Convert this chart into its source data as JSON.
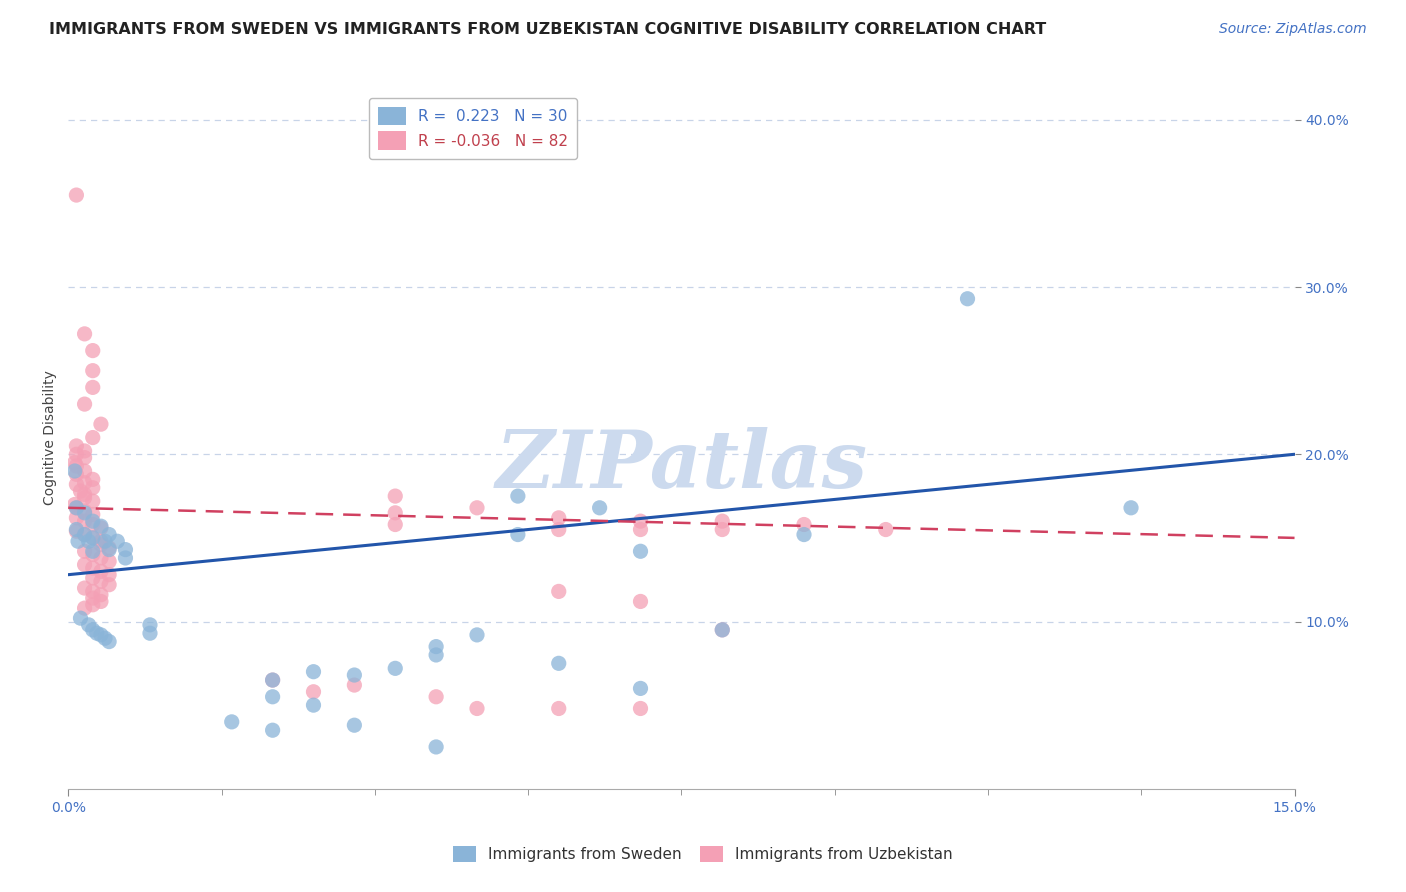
{
  "title": "IMMIGRANTS FROM SWEDEN VS IMMIGRANTS FROM UZBEKISTAN COGNITIVE DISABILITY CORRELATION CHART",
  "source": "Source: ZipAtlas.com",
  "ylabel": "Cognitive Disability",
  "ytick_labels": [
    "10.0%",
    "20.0%",
    "30.0%",
    "40.0%"
  ],
  "ytick_values": [
    0.1,
    0.2,
    0.3,
    0.4
  ],
  "xlim": [
    0.0,
    0.15
  ],
  "ylim": [
    0.0,
    0.42
  ],
  "sweden_color": "#8ab4d8",
  "uzbekistan_color": "#f4a0b5",
  "trendline_sweden_color": "#2255aa",
  "trendline_uzbekistan_color": "#d04060",
  "watermark_text": "ZIPatlas",
  "watermark_color": "#ccdaee",
  "background_color": "#ffffff",
  "grid_color": "#c8d4e8",
  "title_fontsize": 11.5,
  "source_fontsize": 10,
  "axis_label_fontsize": 10,
  "tick_fontsize": 10,
  "legend_fontsize": 11,
  "sweden_trend_x": [
    0.0,
    0.15
  ],
  "sweden_trend_y": [
    0.128,
    0.2
  ],
  "uzbekistan_trend_x": [
    0.0,
    0.15
  ],
  "uzbekistan_trend_y": [
    0.168,
    0.15
  ],
  "sweden_points": [
    [
      0.0008,
      0.19
    ],
    [
      0.001,
      0.168
    ],
    [
      0.001,
      0.155
    ],
    [
      0.0012,
      0.148
    ],
    [
      0.002,
      0.165
    ],
    [
      0.002,
      0.152
    ],
    [
      0.0025,
      0.148
    ],
    [
      0.003,
      0.16
    ],
    [
      0.003,
      0.15
    ],
    [
      0.003,
      0.142
    ],
    [
      0.004,
      0.157
    ],
    [
      0.0045,
      0.148
    ],
    [
      0.005,
      0.152
    ],
    [
      0.005,
      0.143
    ],
    [
      0.006,
      0.148
    ],
    [
      0.007,
      0.143
    ],
    [
      0.007,
      0.138
    ],
    [
      0.0015,
      0.102
    ],
    [
      0.0025,
      0.098
    ],
    [
      0.003,
      0.095
    ],
    [
      0.0035,
      0.093
    ],
    [
      0.004,
      0.092
    ],
    [
      0.0045,
      0.09
    ],
    [
      0.005,
      0.088
    ],
    [
      0.01,
      0.098
    ],
    [
      0.01,
      0.093
    ],
    [
      0.055,
      0.175
    ],
    [
      0.055,
      0.152
    ],
    [
      0.065,
      0.168
    ],
    [
      0.11,
      0.293
    ],
    [
      0.07,
      0.142
    ],
    [
      0.09,
      0.152
    ],
    [
      0.13,
      0.168
    ],
    [
      0.08,
      0.095
    ],
    [
      0.045,
      0.085
    ],
    [
      0.05,
      0.092
    ],
    [
      0.07,
      0.06
    ],
    [
      0.06,
      0.075
    ],
    [
      0.025,
      0.065
    ],
    [
      0.03,
      0.07
    ],
    [
      0.025,
      0.055
    ],
    [
      0.03,
      0.05
    ],
    [
      0.02,
      0.04
    ],
    [
      0.025,
      0.035
    ],
    [
      0.035,
      0.068
    ],
    [
      0.04,
      0.072
    ],
    [
      0.045,
      0.08
    ],
    [
      0.035,
      0.038
    ],
    [
      0.045,
      0.025
    ]
  ],
  "uzbekistan_points": [
    [
      0.001,
      0.355
    ],
    [
      0.002,
      0.272
    ],
    [
      0.003,
      0.262
    ],
    [
      0.003,
      0.25
    ],
    [
      0.003,
      0.24
    ],
    [
      0.002,
      0.23
    ],
    [
      0.004,
      0.218
    ],
    [
      0.003,
      0.21
    ],
    [
      0.001,
      0.205
    ],
    [
      0.002,
      0.202
    ],
    [
      0.001,
      0.2
    ],
    [
      0.002,
      0.198
    ],
    [
      0.0008,
      0.195
    ],
    [
      0.001,
      0.193
    ],
    [
      0.002,
      0.19
    ],
    [
      0.001,
      0.188
    ],
    [
      0.003,
      0.185
    ],
    [
      0.002,
      0.183
    ],
    [
      0.001,
      0.182
    ],
    [
      0.003,
      0.18
    ],
    [
      0.0015,
      0.178
    ],
    [
      0.002,
      0.176
    ],
    [
      0.002,
      0.174
    ],
    [
      0.003,
      0.172
    ],
    [
      0.0008,
      0.17
    ],
    [
      0.001,
      0.168
    ],
    [
      0.002,
      0.166
    ],
    [
      0.003,
      0.164
    ],
    [
      0.001,
      0.162
    ],
    [
      0.002,
      0.16
    ],
    [
      0.003,
      0.158
    ],
    [
      0.004,
      0.156
    ],
    [
      0.001,
      0.154
    ],
    [
      0.002,
      0.152
    ],
    [
      0.003,
      0.15
    ],
    [
      0.004,
      0.148
    ],
    [
      0.004,
      0.146
    ],
    [
      0.005,
      0.144
    ],
    [
      0.002,
      0.142
    ],
    [
      0.003,
      0.14
    ],
    [
      0.004,
      0.138
    ],
    [
      0.005,
      0.136
    ],
    [
      0.002,
      0.134
    ],
    [
      0.003,
      0.132
    ],
    [
      0.004,
      0.13
    ],
    [
      0.005,
      0.128
    ],
    [
      0.003,
      0.126
    ],
    [
      0.004,
      0.124
    ],
    [
      0.005,
      0.122
    ],
    [
      0.002,
      0.12
    ],
    [
      0.003,
      0.118
    ],
    [
      0.004,
      0.116
    ],
    [
      0.003,
      0.114
    ],
    [
      0.004,
      0.112
    ],
    [
      0.003,
      0.11
    ],
    [
      0.002,
      0.108
    ],
    [
      0.04,
      0.175
    ],
    [
      0.04,
      0.165
    ],
    [
      0.04,
      0.158
    ],
    [
      0.05,
      0.168
    ],
    [
      0.06,
      0.162
    ],
    [
      0.06,
      0.155
    ],
    [
      0.07,
      0.16
    ],
    [
      0.07,
      0.155
    ],
    [
      0.08,
      0.16
    ],
    [
      0.08,
      0.155
    ],
    [
      0.09,
      0.158
    ],
    [
      0.1,
      0.155
    ],
    [
      0.06,
      0.118
    ],
    [
      0.07,
      0.112
    ],
    [
      0.08,
      0.095
    ],
    [
      0.05,
      0.048
    ],
    [
      0.035,
      0.062
    ],
    [
      0.03,
      0.058
    ],
    [
      0.025,
      0.065
    ],
    [
      0.045,
      0.055
    ],
    [
      0.06,
      0.048
    ],
    [
      0.07,
      0.048
    ]
  ]
}
